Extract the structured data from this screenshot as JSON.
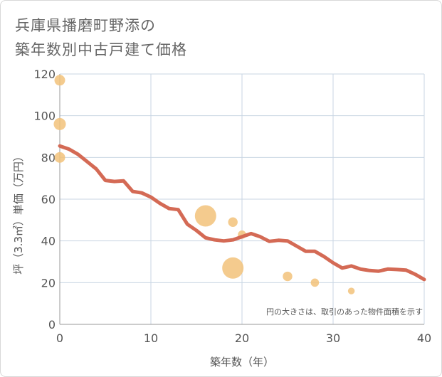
{
  "title_line1": "兵庫県播磨町野添の",
  "title_line2": "築年数別中古戸建て価格",
  "chart_data": {
    "type": "scatter",
    "title": "兵庫県播磨町野添の 築年数別中古戸建て価格",
    "xlabel": "築年数（年）",
    "ylabel": "坪（3.3㎡）単価（万円）",
    "xlim": [
      0,
      40
    ],
    "ylim": [
      0,
      120
    ],
    "xticks": [
      0,
      10,
      20,
      30,
      40
    ],
    "yticks": [
      0,
      20,
      40,
      60,
      80,
      100,
      120
    ],
    "grid": true,
    "annotation": "円の大きさは、取引のあった物件面積を示す",
    "colors": {
      "line": "#d46a55",
      "bubble": "#f2c27a",
      "grid": "#c9d6e3",
      "axis": "#999999"
    },
    "series": [
      {
        "name": "trend",
        "kind": "line",
        "x": [
          0,
          1,
          2,
          3,
          4,
          5,
          6,
          7,
          8,
          9,
          10,
          11,
          12,
          13,
          14,
          15,
          16,
          17,
          18,
          19,
          20,
          21,
          22,
          23,
          24,
          25,
          26,
          27,
          28,
          29,
          30,
          31,
          32,
          33,
          34,
          35,
          36,
          37,
          38,
          39,
          40
        ],
        "y": [
          85.5,
          84,
          81.5,
          78,
          74.5,
          69,
          68.5,
          68.8,
          63.7,
          63,
          61,
          58,
          55.5,
          55,
          48,
          45,
          41.5,
          40.5,
          40,
          40.5,
          42,
          43.5,
          42,
          39.8,
          40.3,
          40,
          37.5,
          35,
          35,
          32.5,
          29.5,
          27,
          28,
          26.5,
          25.8,
          25.5,
          26.5,
          26.3,
          26,
          24,
          21.5
        ]
      },
      {
        "name": "transactions",
        "kind": "bubble",
        "points": [
          {
            "x": 0,
            "y": 117,
            "size": 1
          },
          {
            "x": 0,
            "y": 96,
            "size": 1.3
          },
          {
            "x": 0,
            "y": 80,
            "size": 1
          },
          {
            "x": 16,
            "y": 52,
            "size": 4
          },
          {
            "x": 19,
            "y": 49,
            "size": 0.8
          },
          {
            "x": 20,
            "y": 43,
            "size": 0.6
          },
          {
            "x": 19,
            "y": 27,
            "size": 4
          },
          {
            "x": 25,
            "y": 23,
            "size": 0.8
          },
          {
            "x": 28,
            "y": 20,
            "size": 0.6
          },
          {
            "x": 32,
            "y": 16,
            "size": 0.4
          }
        ]
      }
    ]
  }
}
